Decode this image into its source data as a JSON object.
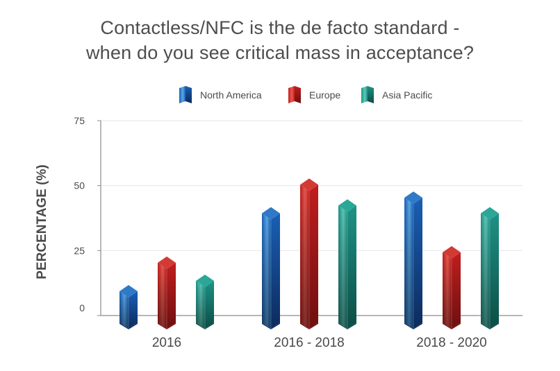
{
  "chart_data": {
    "type": "bar",
    "title_lines": [
      "Contactless/NFC is the de facto standard -",
      "when do you see critical mass in acceptance?"
    ],
    "ylabel": "PERCENTAGE (%)",
    "xlabel": "",
    "ylim": [
      0,
      75
    ],
    "yticks": [
      0,
      25,
      50,
      75
    ],
    "grid": true,
    "legend_position": "top-center",
    "categories": [
      "2016",
      "2016 - 2018",
      "2018 - 2020"
    ],
    "series": [
      {
        "name": "North America",
        "values": [
          12,
          42,
          48
        ],
        "colors": {
          "dark": "#0d2a5c",
          "mid": "#1a5fb4",
          "light": "#5aa8e8",
          "top": "#2f79c8"
        }
      },
      {
        "name": "Europe",
        "values": [
          23,
          53,
          27
        ],
        "colors": {
          "dark": "#6e0f0f",
          "mid": "#c01e1e",
          "light": "#e85a50",
          "top": "#d23a34"
        }
      },
      {
        "name": "Asia Pacific",
        "values": [
          16,
          45,
          42
        ],
        "colors": {
          "dark": "#0b4d45",
          "mid": "#1e9285",
          "light": "#5fc7b8",
          "top": "#2aa797"
        }
      }
    ]
  }
}
